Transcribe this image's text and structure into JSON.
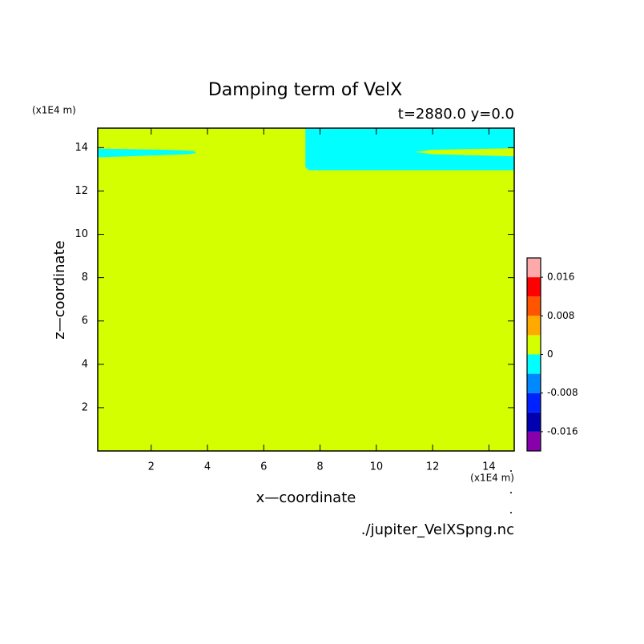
{
  "chart_data": {
    "type": "filled-contour",
    "title": "Damping term of VelX",
    "subtitle": "t=2880.0 y=0.0",
    "x_label": "x—coordinate",
    "y_label": "z—coordinate",
    "x_unit": "(x1E4 m)",
    "y_unit": "(x1E4 m)",
    "source": "./jupiter_VelXSpng.nc",
    "xlim": [
      0.1,
      14.9
    ],
    "ylim": [
      0,
      14.9
    ],
    "xticks": [
      2,
      4,
      6,
      8,
      10,
      12,
      14
    ],
    "yticks": [
      2,
      4,
      6,
      8,
      10,
      12,
      14
    ],
    "levels": [
      -0.02,
      -0.016,
      -0.012,
      -0.008,
      -0.004,
      0,
      0.004,
      0.008,
      0.012,
      0.016,
      0.02
    ],
    "colors": [
      "#8800aa",
      "#0000b0",
      "#0022ff",
      "#0088ff",
      "#00ffff",
      "#d4ff00",
      "#ffaa00",
      "#ff5500",
      "#ff0000",
      "#ffaaaa"
    ],
    "colorbar_ticks": [
      -0.016,
      -0.008,
      0,
      0.008,
      0.016
    ],
    "regions": [
      {
        "value": 0.002,
        "x": [
          0.1,
          14.9,
          14.9,
          0.1
        ],
        "z": [
          0,
          0,
          14.9,
          14.9
        ]
      },
      {
        "value": -0.002,
        "x": [
          0.1,
          2.5,
          3.5,
          3.6,
          3.3,
          0.1
        ],
        "z": [
          13.95,
          13.9,
          13.85,
          13.75,
          13.7,
          13.55
        ]
      },
      {
        "value": -0.002,
        "x": [
          7.48,
          14.9,
          14.9,
          7.6,
          7.48
        ],
        "z": [
          14.9,
          14.9,
          12.96,
          12.96,
          13.1
        ]
      },
      {
        "value": 0.002,
        "x": [
          11.35,
          12,
          14.9,
          14.9,
          12
        ],
        "z": [
          13.8,
          13.9,
          13.97,
          13.6,
          13.7
        ]
      }
    ]
  }
}
